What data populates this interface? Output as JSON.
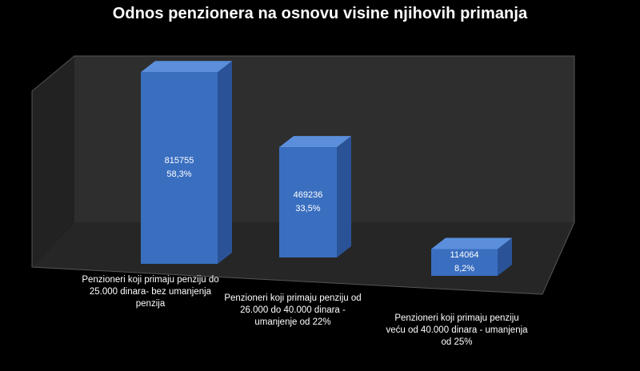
{
  "chart_data": {
    "type": "bar",
    "title": "Odnos penzionera na osnovu visine njihovih primanja",
    "categories": [
      "Penzioneri koji primaju penziju do 25.000 dinara- bez umanjenja penzija",
      "Penzioneri koji primaju  penziju od 26.000 do 40.000 dinara - umanjenje od 22%",
      "Penzioneri koji primaju  penziju veću od 40.000 dinara - umanjenja od 25%"
    ],
    "category_lines": [
      [
        "Penzioneri koji primaju penziju do",
        "25.000 dinara- bez umanjenja",
        "penzija"
      ],
      [
        "Penzioneri koji primaju  penziju od",
        "26.000 do 40.000 dinara -",
        "umanjenje od 22%"
      ],
      [
        "Penzioneri koji primaju  penziju",
        "veću od 40.000 dinara - umanjenja",
        "od 25%"
      ]
    ],
    "values": [
      815755,
      469236,
      114064
    ],
    "percent_labels": [
      "58,3%",
      "33,5%",
      "8,2%"
    ],
    "xlabel": "",
    "ylabel": "",
    "ylim": [
      0,
      1000000
    ],
    "grid": false,
    "legend": "none",
    "colors": {
      "background": "#000000",
      "wall": "#2e2e2e",
      "floor": "#262626",
      "bar_front": "#3a6fc0",
      "bar_top": "#5b8fdc",
      "bar_side": "#2a5397",
      "text": "#ffffff"
    }
  }
}
